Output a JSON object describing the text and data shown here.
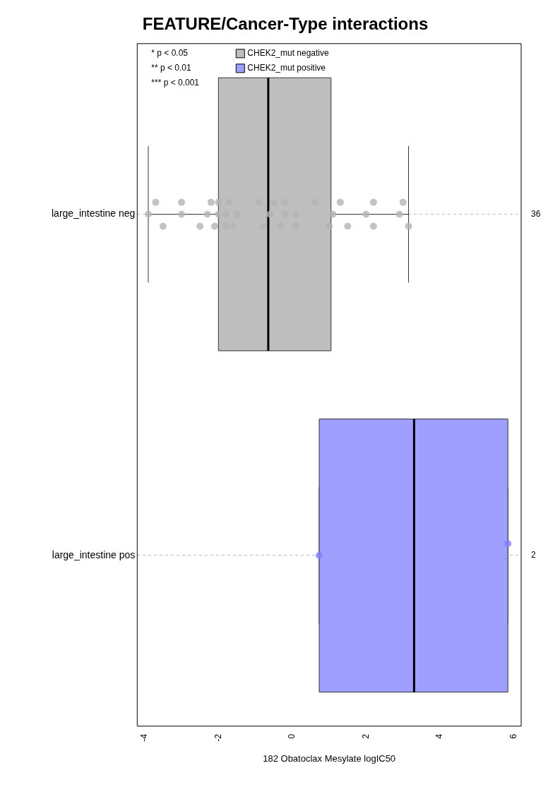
{
  "chart_data": {
    "type": "box",
    "title": "FEATURE/Cancer-Type interactions",
    "xlabel": "182 Obatoclax Mesylate logIC50",
    "orientation": "horizontal",
    "categories": [
      "large_intestine neg",
      "large_intestine pos"
    ],
    "xlim": [
      -4.2,
      6.2
    ],
    "xticks": [
      -4,
      -2,
      0,
      2,
      4,
      6
    ],
    "grid": "y",
    "legend": "top left",
    "series": [
      {
        "name": "CHEK2_mut negative",
        "color": "#bebebe",
        "boxes": [
          {
            "low": -3.9,
            "q1": -2.0,
            "median": -0.65,
            "q3": 1.05,
            "high": 3.15
          },
          null
        ]
      },
      {
        "name": "CHEK2_mut positive",
        "color": "#9f9fff",
        "boxes": [
          null,
          {
            "low": 0.73,
            "q1": 0.73,
            "median": 3.3,
            "q3": 5.84,
            "high": 5.84
          }
        ]
      },
      {
        "type": "scatter",
        "color": "#b4b4b4",
        "x": [
          "large_intestine neg",
          "large_intestine neg",
          "large_intestine neg",
          "large_intestine neg",
          "large_intestine neg",
          "large_intestine neg",
          "large_intestine neg",
          "large_intestine neg",
          "large_intestine neg",
          "large_intestine neg",
          "large_intestine neg",
          "large_intestine neg",
          "large_intestine neg",
          "large_intestine neg",
          "large_intestine neg",
          "large_intestine neg",
          "large_intestine neg",
          "large_intestine neg",
          "large_intestine neg",
          "large_intestine neg",
          "large_intestine neg",
          "large_intestine neg",
          "large_intestine neg",
          "large_intestine neg",
          "large_intestine neg",
          "large_intestine neg",
          "large_intestine neg",
          "large_intestine neg",
          "large_intestine neg",
          "large_intestine neg",
          "large_intestine neg",
          "large_intestine neg",
          "large_intestine neg",
          "large_intestine neg",
          "large_intestine neg",
          "large_intestine neg"
        ],
        "values": [
          -3.9,
          -3.7,
          -3.5,
          -3.0,
          -3.0,
          -2.5,
          -2.3,
          -2.2,
          -2.1,
          -2.0,
          -2.0,
          -1.8,
          -1.8,
          -1.7,
          -1.6,
          -1.5,
          -0.9,
          -0.8,
          -0.6,
          -0.5,
          -0.3,
          -0.2,
          -0.2,
          0.1,
          0.1,
          0.6,
          1.0,
          1.1,
          1.3,
          1.5,
          2.0,
          2.2,
          2.2,
          2.9,
          3.0,
          3.15
        ]
      },
      {
        "type": "scatter",
        "color": "#8080ff",
        "x": [
          "large_intestine pos",
          "large_intestine pos"
        ],
        "values": [
          0.73,
          5.84
        ]
      }
    ],
    "annotations": [
      "* p < 0.05",
      "** p < 0.01",
      "*** p < 0.001",
      "36",
      "2"
    ]
  }
}
